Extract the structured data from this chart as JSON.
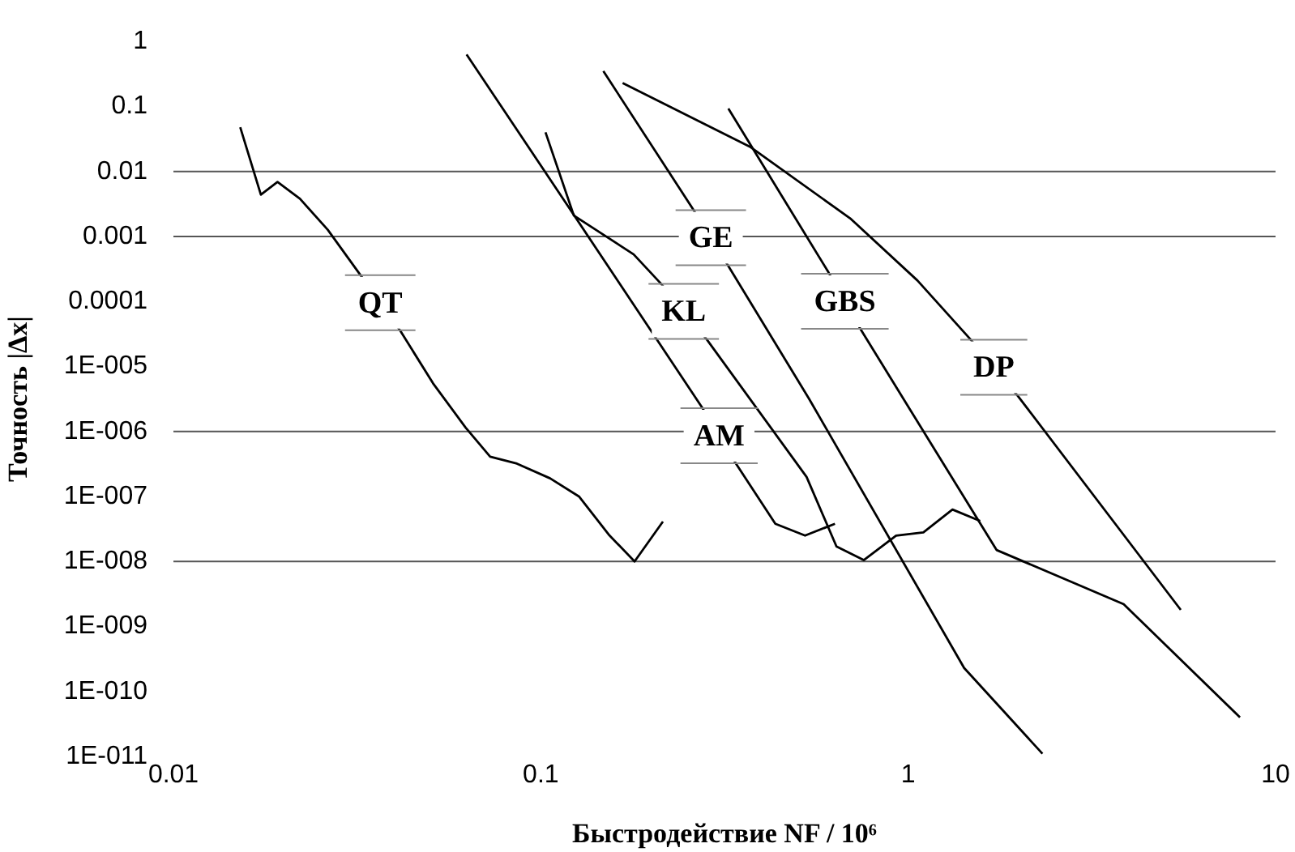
{
  "chart_data": {
    "type": "line",
    "xlabel": "Быстродействие NF / 10⁶",
    "ylabel": "Точность |Δx|",
    "log": "xy",
    "xlim": [
      0.01,
      10
    ],
    "xticks": [
      0.01,
      0.1,
      1,
      10
    ],
    "ylim": [
      1e-11,
      1
    ],
    "yticks": [
      1,
      0.1,
      0.01,
      0.001,
      0.0001,
      {
        "value": 1e-05,
        "label": "1E-005"
      },
      {
        "value": 1e-06,
        "label": "1E-006"
      },
      {
        "value": 1e-07,
        "label": "1E-007"
      },
      {
        "value": 1e-08,
        "label": "1E-008"
      },
      {
        "value": 1e-09,
        "label": "1E-009"
      },
      {
        "value": 1e-10,
        "label": "1E-010"
      },
      {
        "value": 1e-11,
        "label": "1E-011"
      }
    ],
    "grid": false,
    "legend": false,
    "marker": "none",
    "line_style": "solid",
    "ref_lines": [
      {
        "axis": "y",
        "value": 0.01,
        "color": "#555555"
      },
      {
        "axis": "y",
        "value": 0.001,
        "color": "#555555"
      },
      {
        "axis": "y",
        "value": 1e-06,
        "color": "#555555"
      },
      {
        "axis": "y",
        "value": 1e-08,
        "color": "#555555"
      }
    ],
    "series": [
      {
        "name": "QT",
        "color": "#000000",
        "x": [
          0.0152,
          0.0173,
          0.0192,
          0.0221,
          0.0263,
          0.0322,
          0.0415,
          0.0509,
          0.0624,
          0.0728,
          0.0861,
          0.106,
          0.127,
          0.153,
          0.18,
          0.215
        ],
        "values": [
          0.048,
          0.0044,
          0.0069,
          0.0038,
          0.00127,
          0.00026,
          3.5e-05,
          5.5e-06,
          1.15e-06,
          4.1e-07,
          3.2e-07,
          1.9e-07,
          1e-07,
          2.6e-08,
          1e-08,
          4.1e-08
        ]
      },
      {
        "name": "GE",
        "color": "#000000",
        "x": [
          0.148,
          0.26,
          0.324,
          0.537,
          1.42,
          2.32
        ],
        "values": [
          0.35,
          0.0026,
          0.00035,
          3.2e-06,
          2.3e-10,
          1.1e-11
        ]
      },
      {
        "name": "KL",
        "color": "#000000",
        "x": [
          0.103,
          0.123,
          0.179,
          0.212,
          0.283,
          0.529,
          0.638,
          0.757,
          0.927,
          1.1,
          1.32,
          1.57
        ],
        "values": [
          0.04,
          0.0021,
          0.00053,
          0.00019,
          2.6e-05,
          2e-07,
          1.7e-08,
          1.05e-08,
          2.5e-08,
          2.8e-08,
          6.3e-08,
          4.2e-08
        ]
      },
      {
        "name": "GBS",
        "color": "#000000",
        "x": [
          0.324,
          0.607,
          0.745,
          1.74,
          3.86,
          8
        ],
        "values": [
          0.093,
          0.00028,
          3.6e-05,
          1.5e-08,
          2.2e-09,
          4e-11
        ]
      },
      {
        "name": "DP",
        "color": "#000000",
        "x": [
          0.167,
          0.371,
          0.695,
          1.06,
          1.47,
          1.99,
          5.52
        ],
        "values": [
          0.23,
          0.024,
          0.0019,
          0.00021,
          2.7e-05,
          3.5e-06,
          1.8e-09
        ]
      },
      {
        "name": "AM",
        "color": "#000000",
        "x": [
          0.0628,
          0.115,
          0.274,
          0.341,
          0.435,
          0.524,
          0.632
        ],
        "values": [
          0.63,
          0.0038,
          2.4e-06,
          3.1e-07,
          3.8e-08,
          2.5e-08,
          3.8e-08
        ]
      }
    ]
  }
}
